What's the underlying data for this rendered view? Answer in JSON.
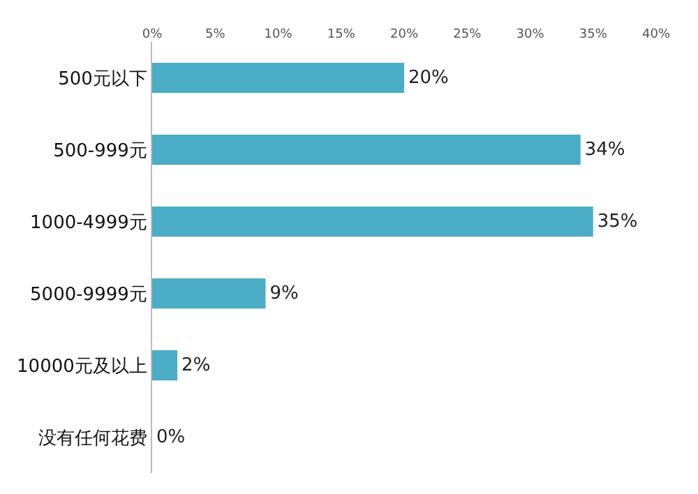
{
  "chart_data": {
    "type": "bar",
    "orientation": "horizontal",
    "categories": [
      "500元以下",
      "500-999元",
      "1000-4999元",
      "5000-9999元",
      "10000元及以上",
      "没有任何花费"
    ],
    "values": [
      20,
      34,
      35,
      9,
      2,
      0
    ],
    "value_labels": [
      "20%",
      "34%",
      "35%",
      "9%",
      "2%",
      "0%"
    ],
    "color": "#4bacc6",
    "xlim": [
      0,
      40
    ],
    "xticks": [
      {
        "value": 0,
        "label": "0%"
      },
      {
        "value": 5,
        "label": "5%"
      },
      {
        "value": 10,
        "label": "10%"
      },
      {
        "value": 15,
        "label": "15%"
      },
      {
        "value": 20,
        "label": "20%"
      },
      {
        "value": 25,
        "label": "25%"
      },
      {
        "value": 30,
        "label": "30%"
      },
      {
        "value": 35,
        "label": "35%"
      },
      {
        "value": 40,
        "label": "40%"
      }
    ],
    "legend": false
  }
}
